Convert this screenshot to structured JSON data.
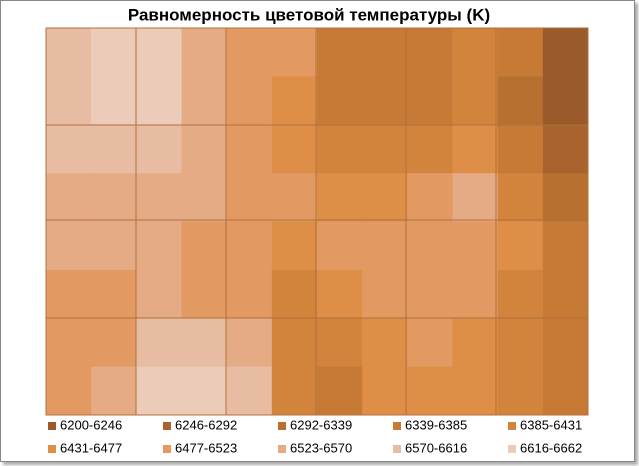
{
  "chart_data": {
    "type": "contour",
    "title": "Равномерность цветовой температуры (K)",
    "levels": [
      6200,
      6246,
      6292,
      6339,
      6385,
      6431,
      6477,
      6523,
      6570,
      6616,
      6662
    ],
    "legend_labels": [
      "6200-6246",
      "6246-6292",
      "6292-6339",
      "6339-6385",
      "6385-6431",
      "6431-6477",
      "6477-6523",
      "6523-6570",
      "6570-6616",
      "6616-6662"
    ],
    "colors": [
      "#9a5a2a",
      "#a9632d",
      "#b87031",
      "#c77a36",
      "#d2843d",
      "#de8e47",
      "#e29a62",
      "#e5ab84",
      "#e8bca2",
      "#ecccb9"
    ],
    "z": [
      [
        6600,
        6620,
        6640,
        6560,
        6520,
        6480,
        6380,
        6360,
        6360,
        6420,
        6340,
        6230
      ],
      [
        6600,
        6620,
        6640,
        6560,
        6520,
        6470,
        6380,
        6350,
        6370,
        6420,
        6320,
        6220
      ],
      [
        6580,
        6590,
        6600,
        6550,
        6520,
        6470,
        6420,
        6390,
        6420,
        6470,
        6380,
        6270
      ],
      [
        6560,
        6560,
        6560,
        6540,
        6510,
        6480,
        6470,
        6460,
        6500,
        6560,
        6430,
        6320
      ],
      [
        6540,
        6550,
        6540,
        6520,
        6500,
        6470,
        6480,
        6490,
        6510,
        6520,
        6440,
        6340
      ],
      [
        6520,
        6520,
        6540,
        6510,
        6480,
        6420,
        6440,
        6480,
        6490,
        6480,
        6420,
        6360
      ],
      [
        6500,
        6520,
        6600,
        6610,
        6560,
        6400,
        6400,
        6460,
        6480,
        6470,
        6410,
        6370
      ],
      [
        6500,
        6530,
        6620,
        6650,
        6590,
        6390,
        6380,
        6450,
        6470,
        6460,
        6400,
        6380
      ]
    ]
  }
}
